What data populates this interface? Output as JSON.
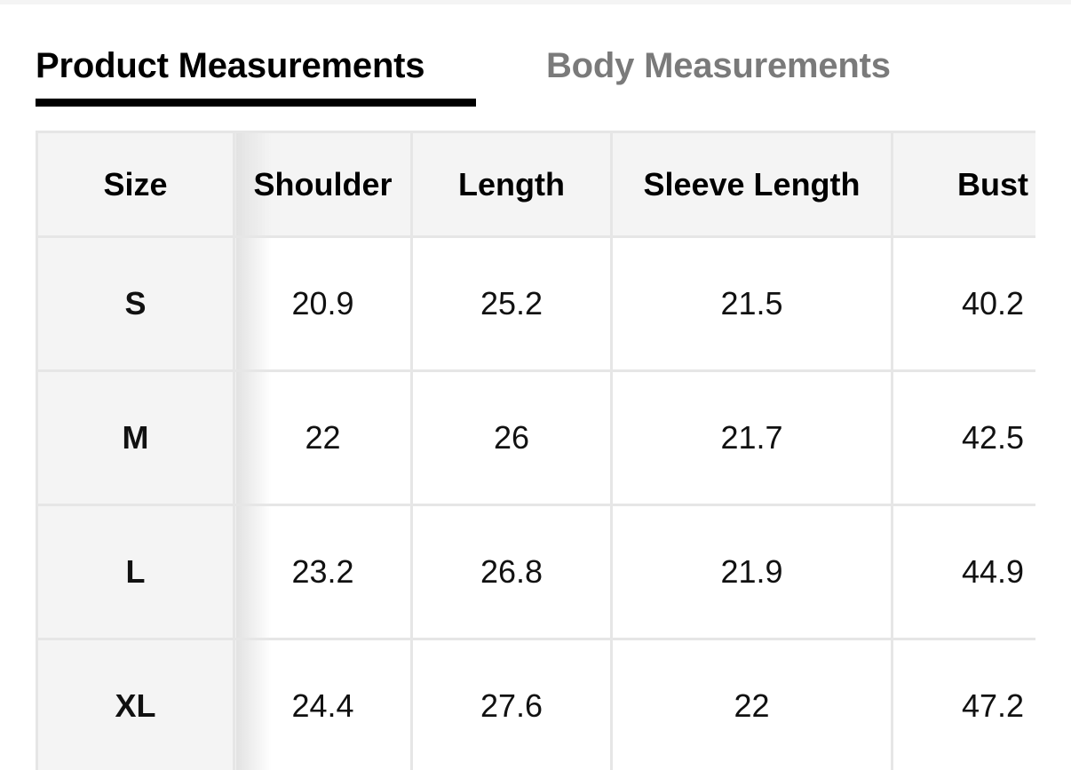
{
  "tabs": [
    {
      "label": "Product Measurements",
      "active": true
    },
    {
      "label": "Body Measurements",
      "active": false
    }
  ],
  "table": {
    "headers": [
      "Size",
      "Shoulder",
      "Length",
      "Sleeve Length",
      "Bust"
    ],
    "rows": [
      [
        "S",
        "20.9",
        "25.2",
        "21.5",
        "40.2"
      ],
      [
        "M",
        "22",
        "26",
        "21.7",
        "42.5"
      ],
      [
        "L",
        "23.2",
        "26.8",
        "21.9",
        "44.9"
      ],
      [
        "XL",
        "24.4",
        "27.6",
        "22",
        "47.2"
      ]
    ]
  }
}
